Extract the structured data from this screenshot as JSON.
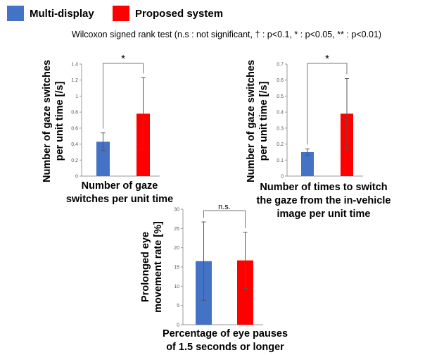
{
  "legend": {
    "items": [
      {
        "label": "Multi-display",
        "color": "#4472C4"
      },
      {
        "label": "Proposed system",
        "color": "#FF0000"
      }
    ]
  },
  "test_note": "Wilcoxon signed rank test (n.s : not significant, † : p<0.1, * : p<0.05, ** : p<0.01)",
  "chart_data": [
    {
      "type": "bar",
      "categories": [
        "Multi-display",
        "Proposed system"
      ],
      "values": [
        0.43,
        0.78
      ],
      "errors": [
        0.11,
        0.45
      ],
      "ylim": [
        0,
        1.4
      ],
      "yticks": [
        0,
        0.2,
        0.4,
        0.6,
        0.8,
        1,
        1.2,
        1.4
      ],
      "ytick_labels": [
        "0",
        "0.2",
        "0.4",
        "0.6",
        "0.8",
        "1",
        "1.2",
        "1.4"
      ],
      "ylabel_lines": [
        "Number of gaze switches",
        "per unit time [/s]"
      ],
      "xlabel_lines": [
        "Number of gaze",
        "switches per unit time"
      ],
      "significance": "*"
    },
    {
      "type": "bar",
      "categories": [
        "Multi-display",
        "Proposed system"
      ],
      "values": [
        0.15,
        0.39
      ],
      "errors": [
        0.02,
        0.22
      ],
      "ylim": [
        0,
        0.7
      ],
      "yticks": [
        0,
        0.1,
        0.2,
        0.3,
        0.4,
        0.5,
        0.6,
        0.7
      ],
      "ytick_labels": [
        "0",
        "0.1",
        "0.2",
        "0.3",
        "0.4",
        "0.5",
        "0.6",
        "0.7"
      ],
      "ylabel_lines": [
        "Number of gaze switches",
        "per unit time [/s]"
      ],
      "xlabel_lines": [
        "Number of times to switch",
        "the gaze from the in-vehicle",
        "image per unit time"
      ],
      "significance": "*"
    },
    {
      "type": "bar",
      "categories": [
        "Multi-display",
        "Proposed system"
      ],
      "values": [
        16.5,
        16.7
      ],
      "errors": [
        10.2,
        7.3
      ],
      "ylim": [
        0,
        30
      ],
      "yticks": [
        0,
        5,
        10,
        15,
        20,
        25,
        30
      ],
      "ytick_labels": [
        "0",
        "5",
        "10",
        "15",
        "20",
        "25",
        "30"
      ],
      "ylabel_lines": [
        "Prolonged eye",
        "movement rate [%]"
      ],
      "xlabel_lines": [
        "Percentage of eye pauses",
        "of 1.5 seconds or longer"
      ],
      "significance": "n.s."
    }
  ]
}
